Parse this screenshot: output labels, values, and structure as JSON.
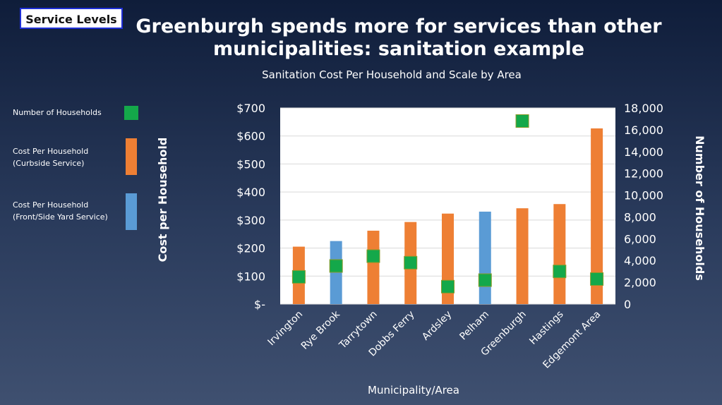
{
  "header": {
    "tag": "Service Levels",
    "title_line1": "Greenburgh spends more for services than other",
    "title_line2": "municipalities: sanitation example",
    "subtitle": "Sanitation Cost Per Household and Scale by Area"
  },
  "legend": {
    "items": [
      {
        "lines": [
          "Number of Households"
        ],
        "color": "#14a84a",
        "shape": "square"
      },
      {
        "lines": [
          "Cost Per Household",
          "(Curbside  Service)"
        ],
        "color": "#ee7f34",
        "shape": "bar"
      },
      {
        "lines": [
          "Cost Per Household",
          "(Front/Side Yard Service)"
        ],
        "color": "#5a9bd5",
        "shape": "bar"
      }
    ]
  },
  "chart_data": {
    "type": "bar",
    "title": "Sanitation Cost Per Household and Scale by Area",
    "xlabel": "Municipality/Area",
    "ylabel": "Cost per Household",
    "y2label": "Number of Households",
    "categories": [
      "Irvington",
      "Rye Brook",
      "Tarrytown",
      "Dobbs Ferry",
      "Ardsley",
      "Pelham",
      "Greenburgh",
      "Hastings",
      "Edgemont Area"
    ],
    "cost_per_household": [
      205,
      225,
      262,
      293,
      323,
      330,
      342,
      357,
      627
    ],
    "service_type": [
      "curbside",
      "front/side yard",
      "curbside",
      "curbside",
      "curbside",
      "front/side yard",
      "curbside",
      "curbside",
      "curbside"
    ],
    "service_colors": {
      "curbside": "#ee7f34",
      "front/side yard": "#5a9bd5"
    },
    "households": [
      2500,
      3500,
      4400,
      3800,
      1600,
      2200,
      16800,
      3000,
      2300
    ],
    "households_color": "#14a84a",
    "ylim": [
      0,
      700
    ],
    "y_ticks": [
      0,
      100,
      200,
      300,
      400,
      500,
      600,
      700
    ],
    "y_tick_labels": [
      "$-",
      "$100",
      "$200",
      "$300",
      "$400",
      "$500",
      "$600",
      "$700"
    ],
    "y2lim": [
      0,
      18000
    ],
    "y2_ticks": [
      0,
      2000,
      4000,
      6000,
      8000,
      10000,
      12000,
      14000,
      16000,
      18000
    ],
    "y2_tick_labels": [
      "0",
      "2,000",
      "4,000",
      "6,000",
      "8,000",
      "10,000",
      "12,000",
      "14,000",
      "16,000",
      "18,000"
    ],
    "grid": true
  }
}
